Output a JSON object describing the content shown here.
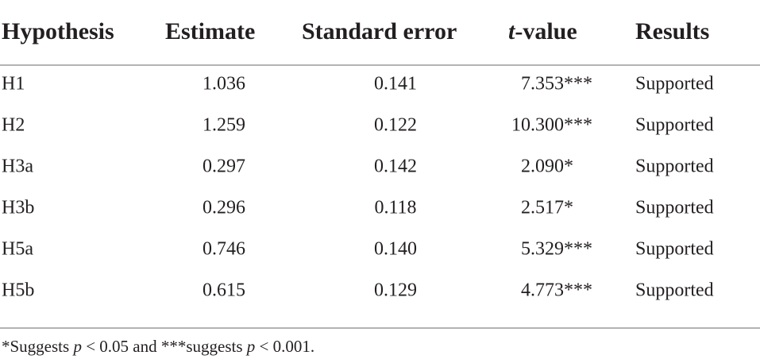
{
  "table": {
    "headers": [
      "Hypothesis",
      "Estimate",
      "Standard error",
      {
        "italic": "t",
        "text": "-value"
      },
      "Results"
    ],
    "rows": [
      [
        "H1",
        "1.036",
        "0.141",
        "7.353***",
        "Supported"
      ],
      [
        "H2",
        "1.259",
        "0.122",
        "10.300***",
        "Supported"
      ],
      [
        "H3a",
        "0.297",
        "0.142",
        "2.090*",
        "Supported"
      ],
      [
        "H3b",
        "0.296",
        "0.118",
        "2.517*",
        "Supported"
      ],
      [
        "H5a",
        "0.746",
        "0.140",
        "5.329***",
        "Supported"
      ],
      [
        "H5b",
        "0.615",
        "0.129",
        "4.773***",
        "Supported"
      ]
    ]
  },
  "footnote": [
    "*Suggests ",
    "p",
    " < 0.05 and ***suggests ",
    "p",
    " < 0.001."
  ]
}
